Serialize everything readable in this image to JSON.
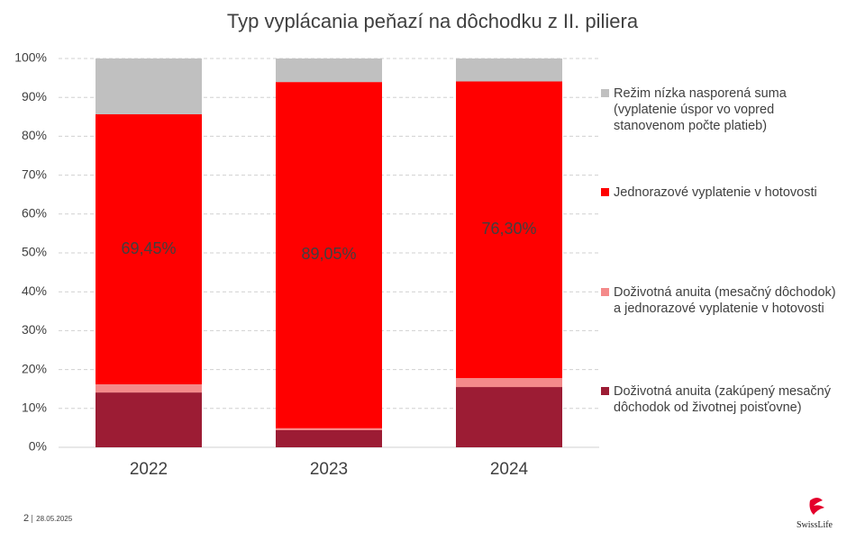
{
  "chart_data": {
    "type": "stacked_bar",
    "title": "Typ vyplácania peňazí na dôchodku z II. piliera",
    "categories": [
      "2022",
      "2023",
      "2024"
    ],
    "series": [
      {
        "name": "Doživotná anuita (zakúpený mesačný\ndôchodok od životnej poisťovne)",
        "color": "#9c1c34",
        "values": [
          14.1,
          4.4,
          15.5
        ]
      },
      {
        "name": "Doživotná anuita (mesačný dôchodok)\na jednorazové vyplatenie v  hotovosti",
        "color": "#f48a8a",
        "values": [
          2.1,
          0.5,
          2.3
        ]
      },
      {
        "name": "Jednorazové vyplatenie v hotovosti",
        "color": "#ff0000",
        "values": [
          69.45,
          89.05,
          76.3
        ],
        "value_labels": [
          "69,45%",
          "89,05%",
          "76,30%"
        ]
      },
      {
        "name": "Režim nízka nasporená suma\n(vyplatenie úspor vo vopred\nstanovenom počte platieb)",
        "color": "#c0c0c0",
        "values": [
          14.35,
          6.05,
          5.9
        ]
      }
    ],
    "ylim": [
      0,
      100
    ],
    "yticks": [
      {
        "value": 0,
        "label": "0%"
      },
      {
        "value": 10,
        "label": "10%"
      },
      {
        "value": 20,
        "label": "20%"
      },
      {
        "value": 30,
        "label": "30%"
      },
      {
        "value": 40,
        "label": "40%"
      },
      {
        "value": 50,
        "label": "50%"
      },
      {
        "value": 60,
        "label": "60%"
      },
      {
        "value": 70,
        "label": "70%"
      },
      {
        "value": 80,
        "label": "80%"
      },
      {
        "value": 90,
        "label": "90%"
      },
      {
        "value": 100,
        "label": "100%"
      }
    ],
    "grid": true,
    "legend": "right"
  },
  "footer": {
    "page": "2",
    "date": "28.05.2025",
    "logo": "SwissLife"
  }
}
